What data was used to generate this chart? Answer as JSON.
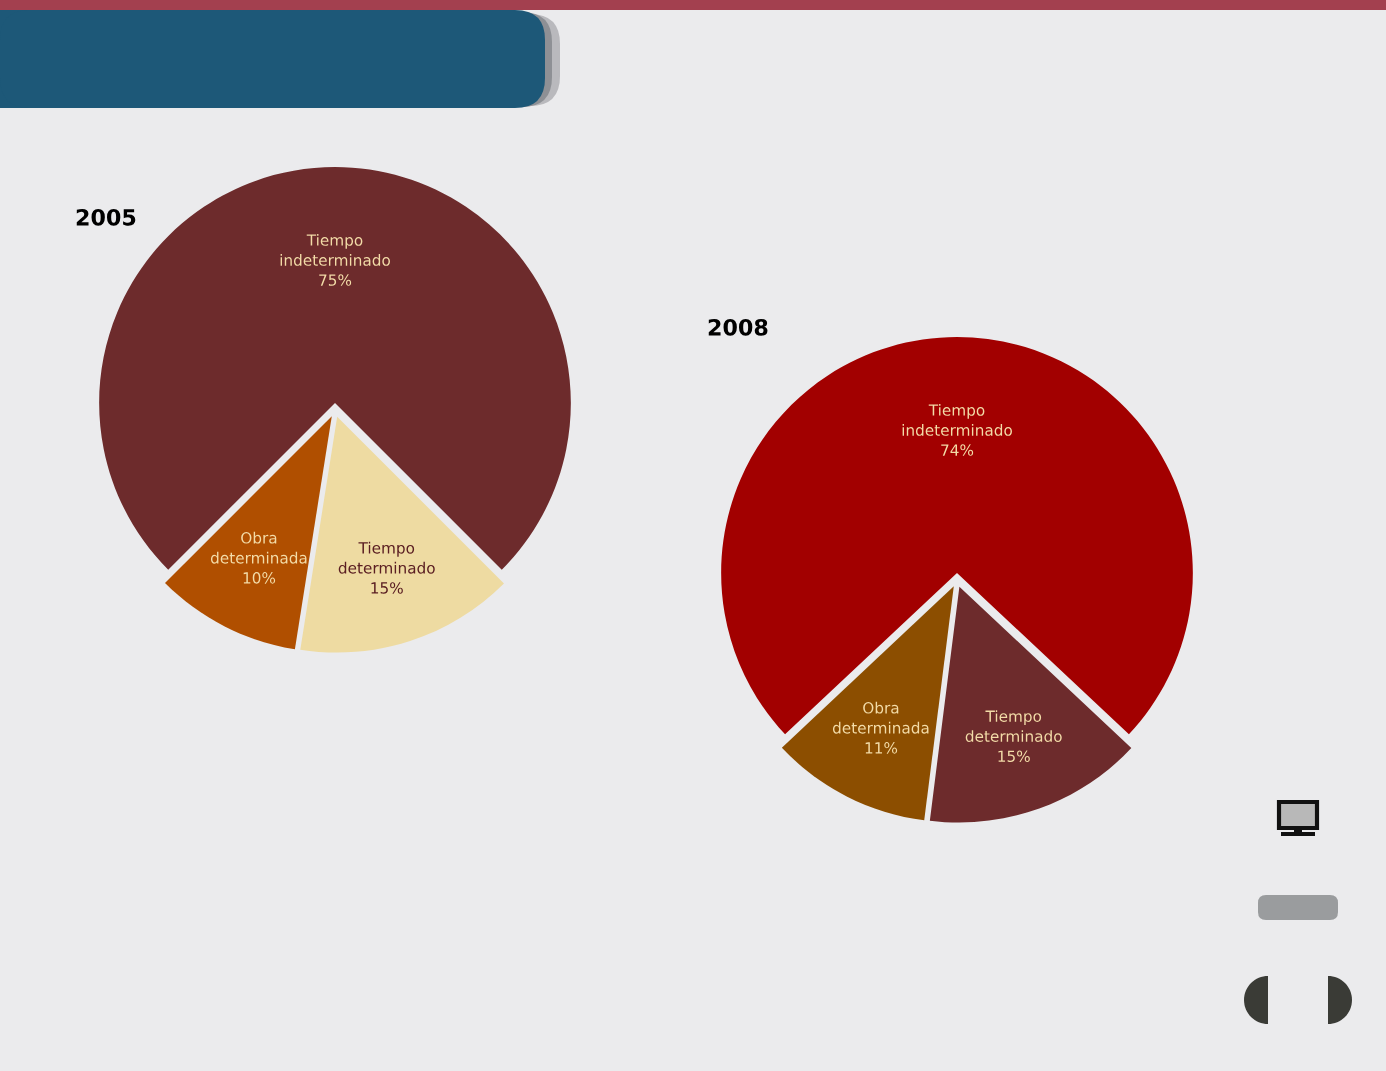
{
  "chart_data": [
    {
      "type": "pie",
      "title": "2005",
      "categories": [
        "Tiempo indeterminado",
        "Tiempo determinado",
        "Obra determinada"
      ],
      "values": [
        75,
        15,
        10
      ],
      "colors": [
        "#6d2b2c",
        "#eedba2",
        "#b04f00"
      ],
      "value_labels": [
        "75%",
        "15%",
        "10%"
      ]
    },
    {
      "type": "pie",
      "title": "2008",
      "categories": [
        "Tiempo indeterminado",
        "Tiempo determinado",
        "Obra determinada"
      ],
      "values": [
        74,
        15,
        11
      ],
      "colors": [
        "#a20000",
        "#6d2b2c",
        "#8c4e00"
      ],
      "value_labels": [
        "74%",
        "15%",
        "11%"
      ]
    }
  ]
}
